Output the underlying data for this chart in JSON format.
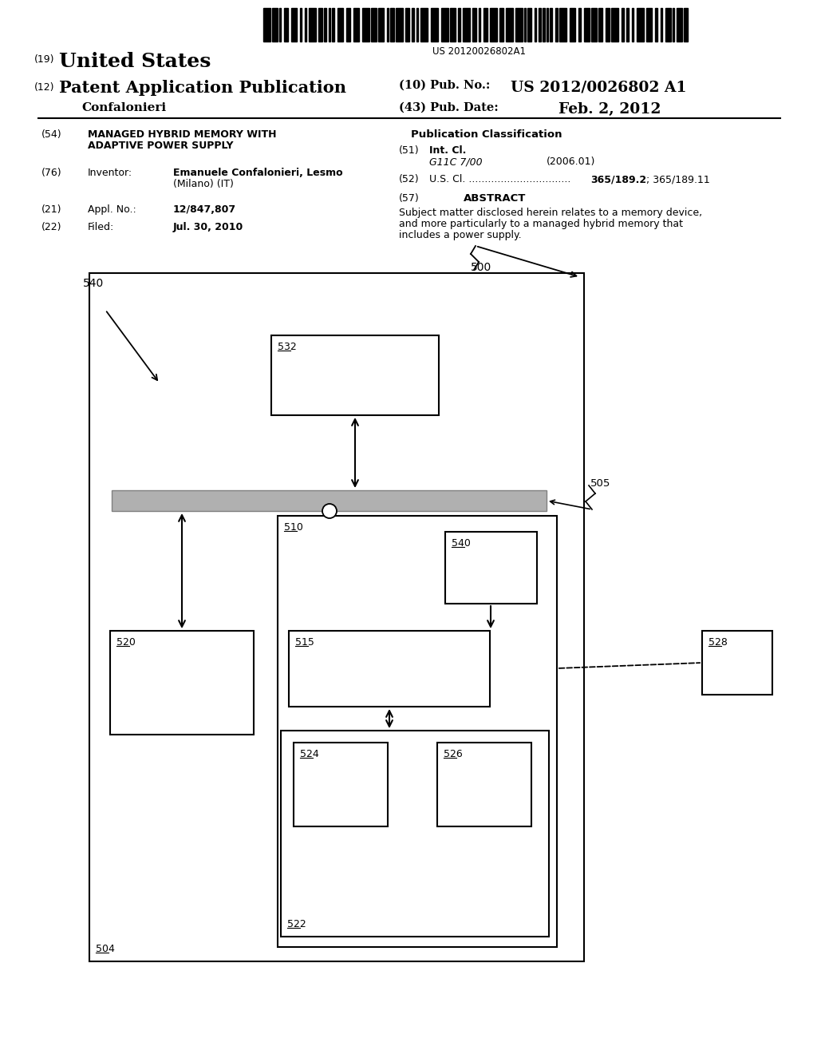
{
  "bg_color": "#ffffff",
  "barcode_text": "US 20120026802A1",
  "header_line1_left": "(19)",
  "header_line1_right": "United States",
  "header_line2_left": "(12)",
  "header_line2_right": "Patent Application Publication",
  "header_line2_pub_label": "(10) Pub. No.:",
  "header_line2_pub_no": "US 2012/0026802 A1",
  "header_line3_name": "Confalonieri",
  "header_line3_date_label": "(43) Pub. Date:",
  "header_line3_date": "Feb. 2, 2012",
  "field_54_text1": "MANAGED HYBRID MEMORY WITH",
  "field_54_text2": "ADAPTIVE POWER SUPPLY",
  "pub_class_title": "Publication Classification",
  "field_51_class": "G11C 7/00",
  "field_51_year": "(2006.01)",
  "abstract_text1": "Subject matter disclosed herein relates to a memory device,",
  "abstract_text2": "and more particularly to a managed hybrid memory that",
  "abstract_text3": "includes a power supply.",
  "field_76_name": "Emanuele Confalonieri, Lesmo",
  "field_76_city": "(Milano) (IT)",
  "field_21_text": "12/847,807",
  "field_22_text": "Jul. 30, 2010"
}
